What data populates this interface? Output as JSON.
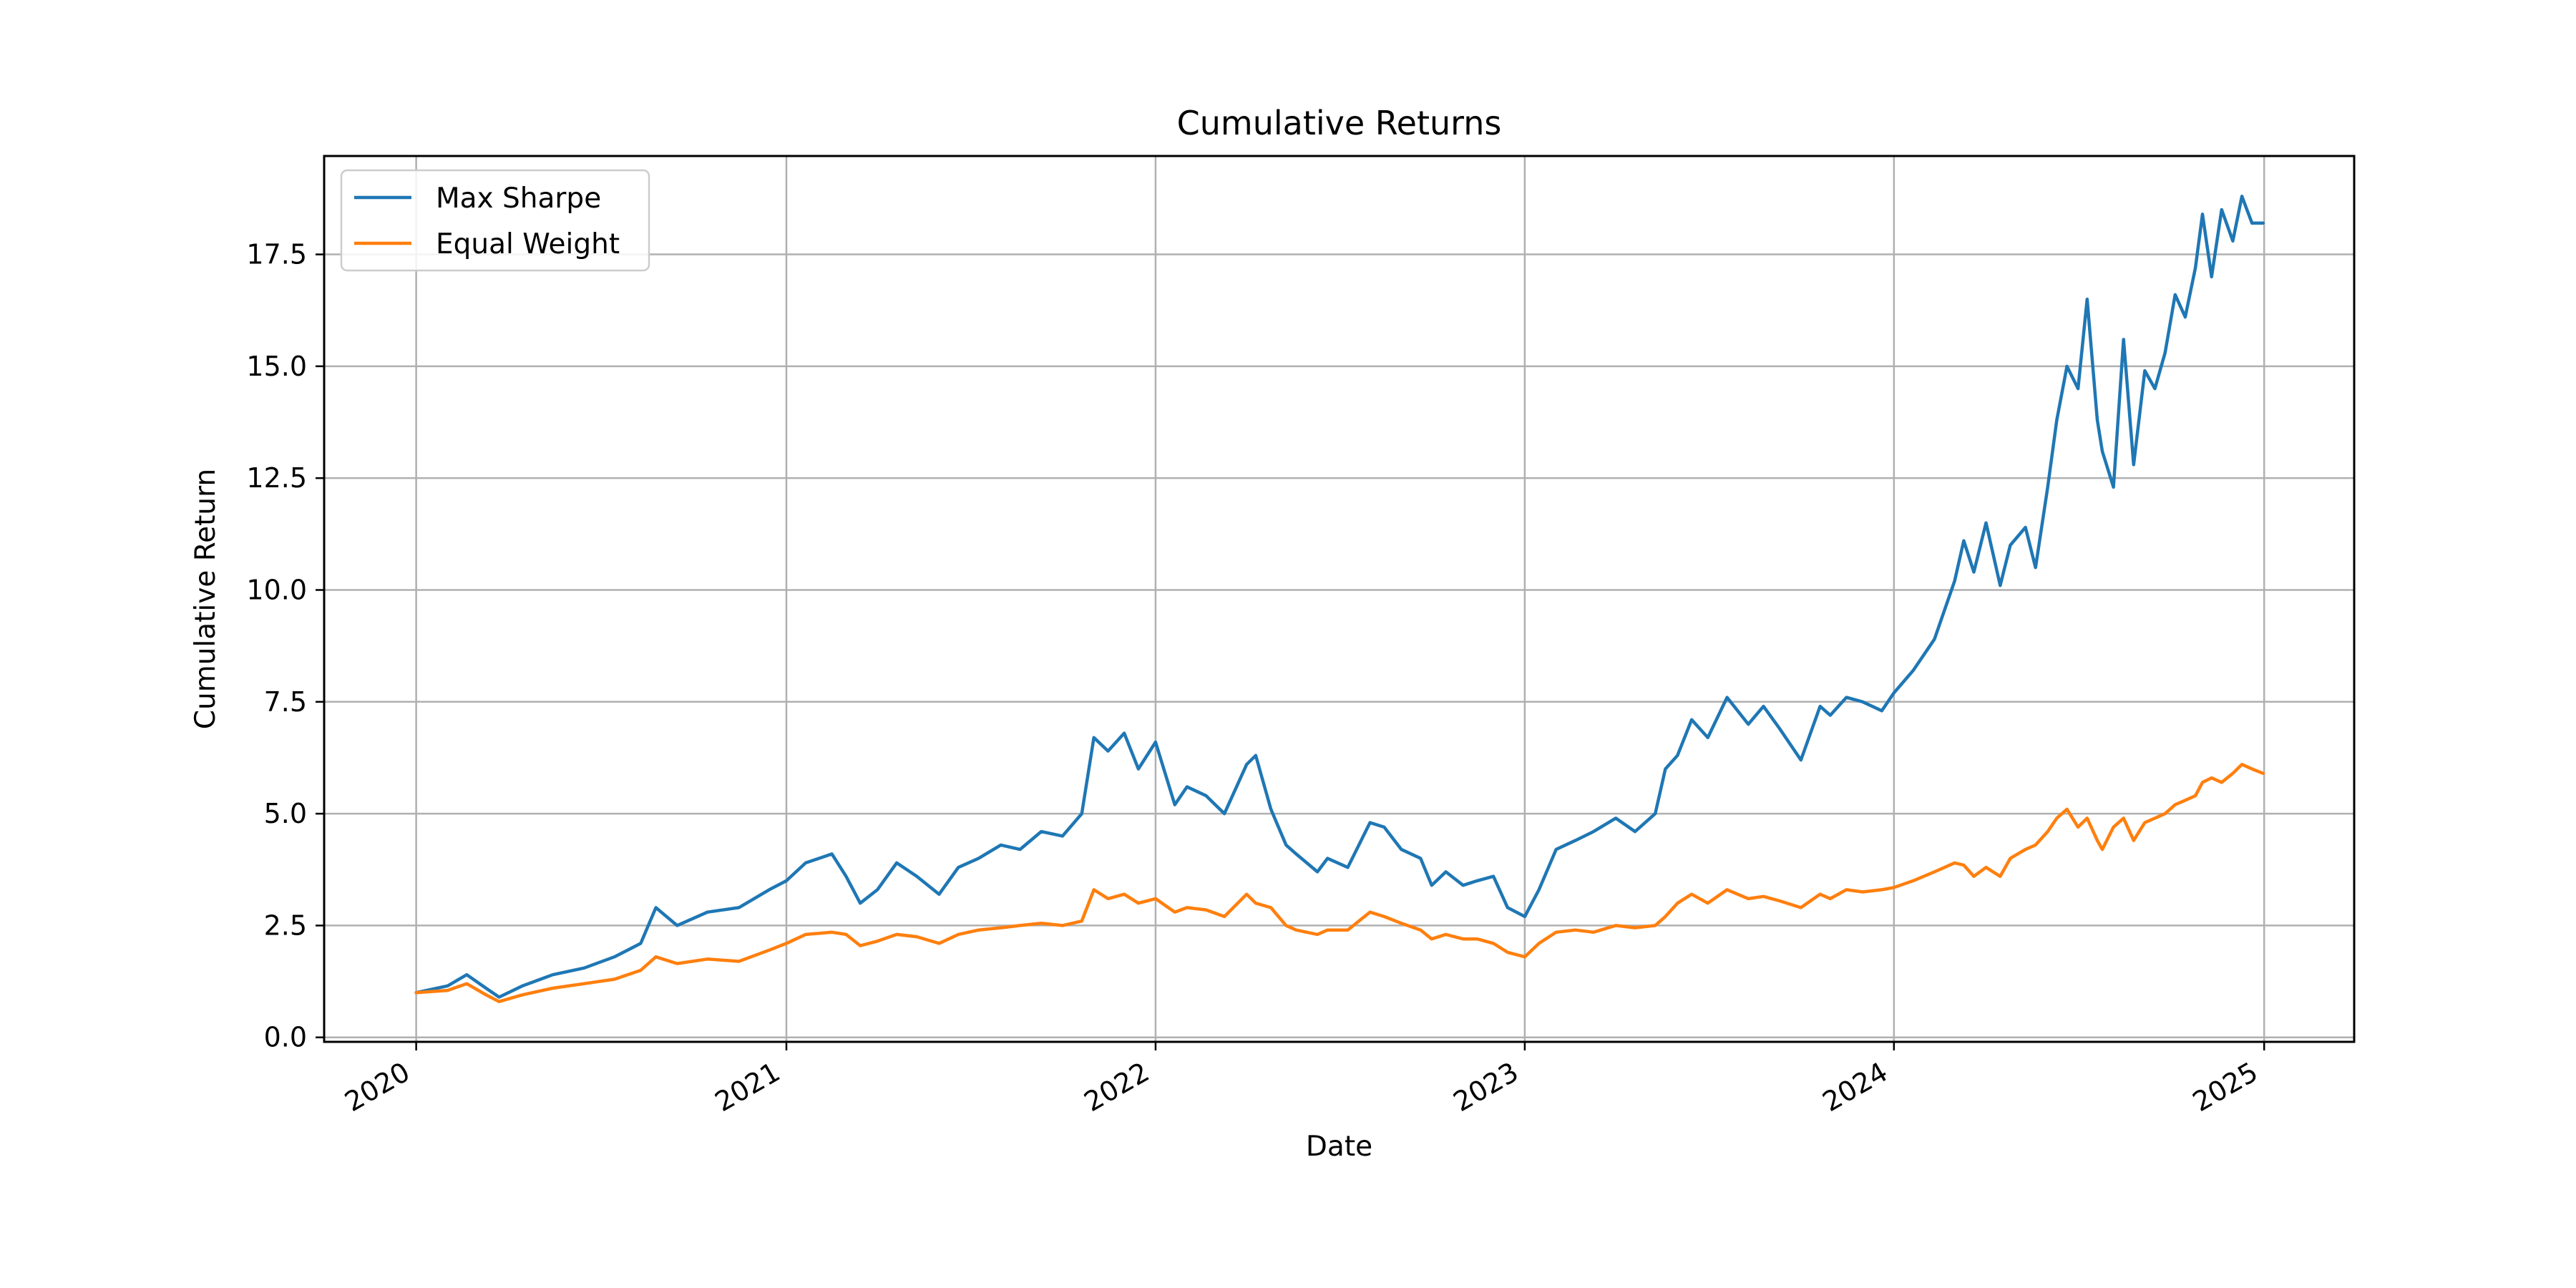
{
  "chart_data": {
    "type": "line",
    "title": "Cumulative Returns",
    "xlabel": "Date",
    "ylabel": "Cumulative Return",
    "xlim": [
      "2019-10-02",
      "2025-03-31"
    ],
    "ylim": [
      -0.1,
      19.7
    ],
    "x_ticks": [
      "2020-01-01",
      "2021-01-01",
      "2022-01-01",
      "2023-01-01",
      "2024-01-01",
      "2025-01-01"
    ],
    "x_tick_labels": [
      "2020",
      "2021",
      "2022",
      "2023",
      "2024",
      "2025"
    ],
    "y_ticks": [
      0.0,
      2.5,
      5.0,
      7.5,
      10.0,
      12.5,
      15.0,
      17.5
    ],
    "y_tick_labels": [
      "0.0",
      "2.5",
      "5.0",
      "7.5",
      "10.0",
      "12.5",
      "15.0",
      "17.5"
    ],
    "grid": true,
    "legend_position": "upper-left",
    "series": [
      {
        "name": "Max Sharpe",
        "color": "#1f77b4",
        "x": [
          "2020-01-01",
          "2020-02-01",
          "2020-02-20",
          "2020-03-10",
          "2020-03-23",
          "2020-04-15",
          "2020-05-15",
          "2020-06-15",
          "2020-07-15",
          "2020-08-10",
          "2020-08-25",
          "2020-09-15",
          "2020-10-15",
          "2020-11-15",
          "2020-12-15",
          "2021-01-01",
          "2021-01-20",
          "2021-02-15",
          "2021-03-01",
          "2021-03-15",
          "2021-04-01",
          "2021-04-20",
          "2021-05-10",
          "2021-06-01",
          "2021-06-20",
          "2021-07-10",
          "2021-08-01",
          "2021-08-20",
          "2021-09-10",
          "2021-10-01",
          "2021-10-20",
          "2021-11-01",
          "2021-11-15",
          "2021-12-01",
          "2021-12-15",
          "2022-01-01",
          "2022-01-20",
          "2022-02-01",
          "2022-02-20",
          "2022-03-10",
          "2022-04-01",
          "2022-04-10",
          "2022-04-25",
          "2022-05-10",
          "2022-05-20",
          "2022-06-10",
          "2022-06-20",
          "2022-07-10",
          "2022-08-01",
          "2022-08-15",
          "2022-09-01",
          "2022-09-20",
          "2022-10-01",
          "2022-10-15",
          "2022-11-01",
          "2022-11-15",
          "2022-12-01",
          "2022-12-15",
          "2023-01-01",
          "2023-01-15",
          "2023-02-01",
          "2023-02-20",
          "2023-03-10",
          "2023-04-01",
          "2023-04-20",
          "2023-05-10",
          "2023-05-20",
          "2023-06-01",
          "2023-06-15",
          "2023-07-01",
          "2023-07-20",
          "2023-08-10",
          "2023-08-25",
          "2023-09-10",
          "2023-10-01",
          "2023-10-20",
          "2023-10-30",
          "2023-11-15",
          "2023-12-01",
          "2023-12-20",
          "2024-01-01",
          "2024-01-20",
          "2024-02-10",
          "2024-03-01",
          "2024-03-10",
          "2024-03-20",
          "2024-04-01",
          "2024-04-15",
          "2024-04-25",
          "2024-05-10",
          "2024-05-20",
          "2024-06-01",
          "2024-06-10",
          "2024-06-20",
          "2024-07-01",
          "2024-07-10",
          "2024-07-20",
          "2024-07-25",
          "2024-08-05",
          "2024-08-15",
          "2024-08-25",
          "2024-09-05",
          "2024-09-15",
          "2024-09-25",
          "2024-10-05",
          "2024-10-15",
          "2024-10-25",
          "2024-11-01",
          "2024-11-10",
          "2024-11-20",
          "2024-12-01",
          "2024-12-10",
          "2024-12-20",
          "2024-12-31"
        ],
        "y": [
          1.0,
          1.15,
          1.4,
          1.1,
          0.9,
          1.15,
          1.4,
          1.55,
          1.8,
          2.1,
          2.9,
          2.5,
          2.8,
          2.9,
          3.3,
          3.5,
          3.9,
          4.1,
          3.6,
          3.0,
          3.3,
          3.9,
          3.6,
          3.2,
          3.8,
          4.0,
          4.3,
          4.2,
          4.6,
          4.5,
          5.0,
          6.7,
          6.4,
          6.8,
          6.0,
          6.6,
          5.2,
          5.6,
          5.4,
          5.0,
          6.1,
          6.3,
          5.1,
          4.3,
          4.1,
          3.7,
          4.0,
          3.8,
          4.8,
          4.7,
          4.2,
          4.0,
          3.4,
          3.7,
          3.4,
          3.5,
          3.6,
          2.9,
          2.7,
          3.3,
          4.2,
          4.4,
          4.6,
          4.9,
          4.6,
          5.0,
          6.0,
          6.3,
          7.1,
          6.7,
          7.6,
          7.0,
          7.4,
          6.9,
          6.2,
          7.4,
          7.2,
          7.6,
          7.5,
          7.3,
          7.7,
          8.2,
          8.9,
          10.2,
          11.1,
          10.4,
          11.5,
          10.1,
          11.0,
          11.4,
          10.5,
          12.3,
          13.8,
          15.0,
          14.5,
          16.5,
          13.8,
          13.1,
          12.3,
          15.6,
          12.8,
          14.9,
          14.5,
          15.3,
          16.6,
          16.1,
          17.2,
          18.4,
          17.0,
          18.5,
          17.8,
          18.8,
          18.2,
          18.2
        ]
      },
      {
        "name": "Equal Weight",
        "color": "#ff7f0e",
        "x": [
          "2020-01-01",
          "2020-02-01",
          "2020-02-20",
          "2020-03-10",
          "2020-03-23",
          "2020-04-15",
          "2020-05-15",
          "2020-06-15",
          "2020-07-15",
          "2020-08-10",
          "2020-08-25",
          "2020-09-15",
          "2020-10-15",
          "2020-11-15",
          "2020-12-15",
          "2021-01-01",
          "2021-01-20",
          "2021-02-15",
          "2021-03-01",
          "2021-03-15",
          "2021-04-01",
          "2021-04-20",
          "2021-05-10",
          "2021-06-01",
          "2021-06-20",
          "2021-07-10",
          "2021-08-01",
          "2021-08-20",
          "2021-09-10",
          "2021-10-01",
          "2021-10-20",
          "2021-11-01",
          "2021-11-15",
          "2021-12-01",
          "2021-12-15",
          "2022-01-01",
          "2022-01-20",
          "2022-02-01",
          "2022-02-20",
          "2022-03-10",
          "2022-04-01",
          "2022-04-10",
          "2022-04-25",
          "2022-05-10",
          "2022-05-20",
          "2022-06-10",
          "2022-06-20",
          "2022-07-10",
          "2022-08-01",
          "2022-08-15",
          "2022-09-01",
          "2022-09-20",
          "2022-10-01",
          "2022-10-15",
          "2022-11-01",
          "2022-11-15",
          "2022-12-01",
          "2022-12-15",
          "2023-01-01",
          "2023-01-15",
          "2023-02-01",
          "2023-02-20",
          "2023-03-10",
          "2023-04-01",
          "2023-04-20",
          "2023-05-10",
          "2023-05-20",
          "2023-06-01",
          "2023-06-15",
          "2023-07-01",
          "2023-07-20",
          "2023-08-10",
          "2023-08-25",
          "2023-09-10",
          "2023-10-01",
          "2023-10-20",
          "2023-10-30",
          "2023-11-15",
          "2023-12-01",
          "2023-12-20",
          "2024-01-01",
          "2024-01-20",
          "2024-02-10",
          "2024-03-01",
          "2024-03-10",
          "2024-03-20",
          "2024-04-01",
          "2024-04-15",
          "2024-04-25",
          "2024-05-10",
          "2024-05-20",
          "2024-06-01",
          "2024-06-10",
          "2024-06-20",
          "2024-07-01",
          "2024-07-10",
          "2024-07-20",
          "2024-07-25",
          "2024-08-05",
          "2024-08-15",
          "2024-08-25",
          "2024-09-05",
          "2024-09-15",
          "2024-09-25",
          "2024-10-05",
          "2024-10-15",
          "2024-10-25",
          "2024-11-01",
          "2024-11-10",
          "2024-11-20",
          "2024-12-01",
          "2024-12-10",
          "2024-12-20",
          "2024-12-31"
        ],
        "y": [
          1.0,
          1.05,
          1.2,
          0.95,
          0.8,
          0.95,
          1.1,
          1.2,
          1.3,
          1.5,
          1.8,
          1.65,
          1.75,
          1.7,
          1.95,
          2.1,
          2.3,
          2.35,
          2.3,
          2.05,
          2.15,
          2.3,
          2.25,
          2.1,
          2.3,
          2.4,
          2.45,
          2.5,
          2.55,
          2.5,
          2.6,
          3.3,
          3.1,
          3.2,
          3.0,
          3.1,
          2.8,
          2.9,
          2.85,
          2.7,
          3.2,
          3.0,
          2.9,
          2.5,
          2.4,
          2.3,
          2.4,
          2.4,
          2.8,
          2.7,
          2.55,
          2.4,
          2.2,
          2.3,
          2.2,
          2.2,
          2.1,
          1.9,
          1.8,
          2.1,
          2.35,
          2.4,
          2.35,
          2.5,
          2.45,
          2.5,
          2.7,
          3.0,
          3.2,
          3.0,
          3.3,
          3.1,
          3.15,
          3.05,
          2.9,
          3.2,
          3.1,
          3.3,
          3.25,
          3.3,
          3.35,
          3.5,
          3.7,
          3.9,
          3.85,
          3.6,
          3.8,
          3.6,
          4.0,
          4.2,
          4.3,
          4.6,
          4.9,
          5.1,
          4.7,
          4.9,
          4.4,
          4.2,
          4.7,
          4.9,
          4.4,
          4.8,
          4.9,
          5.0,
          5.2,
          5.3,
          5.4,
          5.7,
          5.8,
          5.7,
          5.9,
          6.1,
          6.0,
          5.9
        ]
      }
    ]
  }
}
